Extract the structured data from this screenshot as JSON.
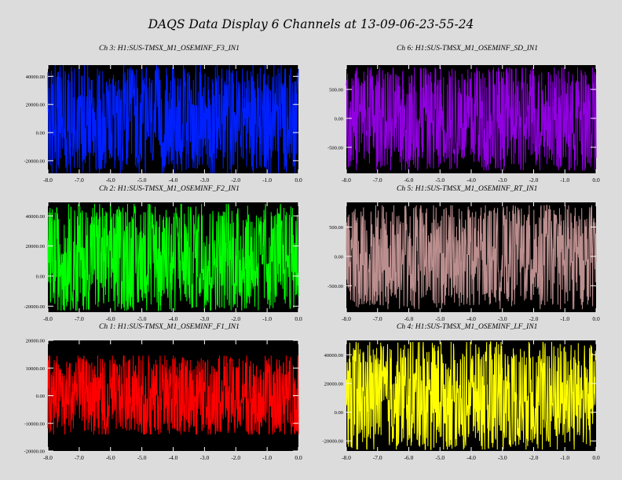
{
  "title": "DAQS Data Display 6 Channels at 13-09-06-23-55-24",
  "chart_data": [
    {
      "type": "line",
      "title": "Ch 3:  H1:SUS-TMSX_M1_OSEMINF_F3_IN1",
      "color": "#0020ff",
      "xlim": [
        -8.0,
        0.0
      ],
      "x_ticks": [
        "-8.0",
        "-7.0",
        "-6.0",
        "-5.0",
        "-4.0",
        "-3.0",
        "-2.0",
        "-1.0",
        "0.0"
      ],
      "ylim": [
        -29000,
        48000
      ],
      "y_ticks": [
        40000,
        20000,
        0,
        -20000
      ],
      "y_tick_labels": [
        "40000.00",
        "20000.00",
        "0.00",
        "-20000.00"
      ],
      "signal": {
        "center": 10000,
        "amplitude": 37000,
        "low_clip": -29000,
        "high_clip": 48000,
        "spike": 0.86
      },
      "series": [
        {
          "values": []
        }
      ]
    },
    {
      "type": "line",
      "title": "Ch 2:  H1:SUS-TMSX_M1_OSEMINF_F2_IN1",
      "color": "#00ff00",
      "xlim": [
        -8.0,
        0.0
      ],
      "x_ticks": [
        "-8.0",
        "-7.0",
        "-6.0",
        "-5.0",
        "-4.0",
        "-3.0",
        "-2.0",
        "-1.0",
        "0.0"
      ],
      "ylim": [
        -24000,
        49000
      ],
      "y_ticks": [
        40000,
        20000,
        0,
        -20000
      ],
      "y_tick_labels": [
        "40000.00",
        "20000.00",
        "0.00",
        "-20000.00"
      ],
      "signal": {
        "center": 12000,
        "amplitude": 35000,
        "low_clip": -23000,
        "high_clip": 48000,
        "spike": 0.85
      },
      "series": [
        {
          "values": []
        }
      ]
    },
    {
      "type": "line",
      "title": "Ch 1:  H1:SUS-TMSX_M1_OSEMINF_F1_IN1",
      "color": "#ff0000",
      "xlim": [
        -8.0,
        0.0
      ],
      "x_ticks": [
        "-8.0",
        "-7.0",
        "-6.0",
        "-5.0",
        "-4.0",
        "-3.0",
        "-2.0",
        "-1.0",
        "0.0"
      ],
      "ylim": [
        -20000,
        20000
      ],
      "y_ticks": [
        20000,
        10000,
        0,
        -10000,
        -20000
      ],
      "y_tick_labels": [
        "20000.00",
        "10000.00",
        "0.00",
        "-10000.00",
        "-20000.00"
      ],
      "signal": {
        "center": 0,
        "amplitude": 13500,
        "low_clip": -14000,
        "high_clip": 14500,
        "spike": 0.8
      },
      "series": [
        {
          "values": []
        }
      ]
    },
    {
      "type": "line",
      "title": "Ch 6:  H1:SUS-TMSX_M1_OSEMINF_SD_IN1",
      "color": "#9000e0",
      "xlim": [
        -8.0,
        0.0
      ],
      "x_ticks": [
        "-8.0",
        "-7.0",
        "-6.0",
        "-5.0",
        "-4.0",
        "-3.0",
        "-2.0",
        "-1.0",
        "0.0"
      ],
      "ylim": [
        -950,
        920
      ],
      "y_ticks": [
        500,
        0,
        -500
      ],
      "y_tick_labels": [
        "500.00",
        "0.00",
        "-500.00"
      ],
      "signal": {
        "center": 0,
        "amplitude": 860,
        "low_clip": -900,
        "high_clip": 880,
        "spike": 0.83
      },
      "series": [
        {
          "values": []
        }
      ]
    },
    {
      "type": "line",
      "title": "Ch 5:  H1:SUS-TMSX_M1_OSEMINF_RT_IN1",
      "color": "#bc8f8f",
      "xlim": [
        -8.0,
        0.0
      ],
      "x_ticks": [
        "-8.0",
        "-7.0",
        "-6.0",
        "-5.0",
        "-4.0",
        "-3.0",
        "-2.0",
        "-1.0",
        "0.0"
      ],
      "ylim": [
        -950,
        920
      ],
      "y_ticks": [
        500,
        0,
        -500
      ],
      "y_tick_labels": [
        "500.00",
        "0.00",
        "-500.00"
      ],
      "signal": {
        "center": 0,
        "amplitude": 850,
        "low_clip": -900,
        "high_clip": 870,
        "spike": 0.82
      },
      "series": [
        {
          "values": []
        }
      ]
    },
    {
      "type": "line",
      "title": "Ch 4:  H1:SUS-TMSX_M1_OSEMINF_LF_IN1",
      "color": "#ffff00",
      "xlim": [
        -8.0,
        0.0
      ],
      "x_ticks": [
        "-8.0",
        "-7.0",
        "-6.0",
        "-5.0",
        "-4.0",
        "-3.0",
        "-2.0",
        "-1.0",
        "0.0"
      ],
      "ylim": [
        -27000,
        50000
      ],
      "y_ticks": [
        40000,
        20000,
        0,
        -20000
      ],
      "y_tick_labels": [
        "40000.00",
        "20000.00",
        "0.00",
        "-20000.00"
      ],
      "signal": {
        "center": 12000,
        "amplitude": 37000,
        "low_clip": -26000,
        "high_clip": 49000,
        "spike": 0.86
      },
      "series": [
        {
          "values": []
        }
      ]
    }
  ]
}
